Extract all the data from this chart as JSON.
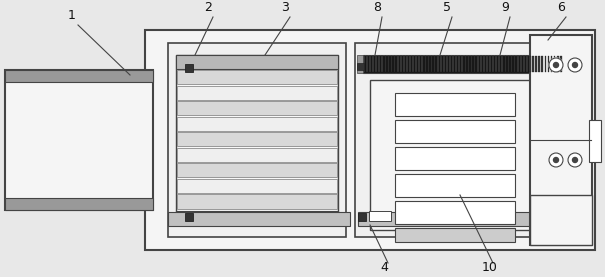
{
  "fig_width": 6.05,
  "fig_height": 2.77,
  "dpi": 100,
  "bg_color": "#e8e8e8",
  "lc": "#444444",
  "lc2": "#222222"
}
